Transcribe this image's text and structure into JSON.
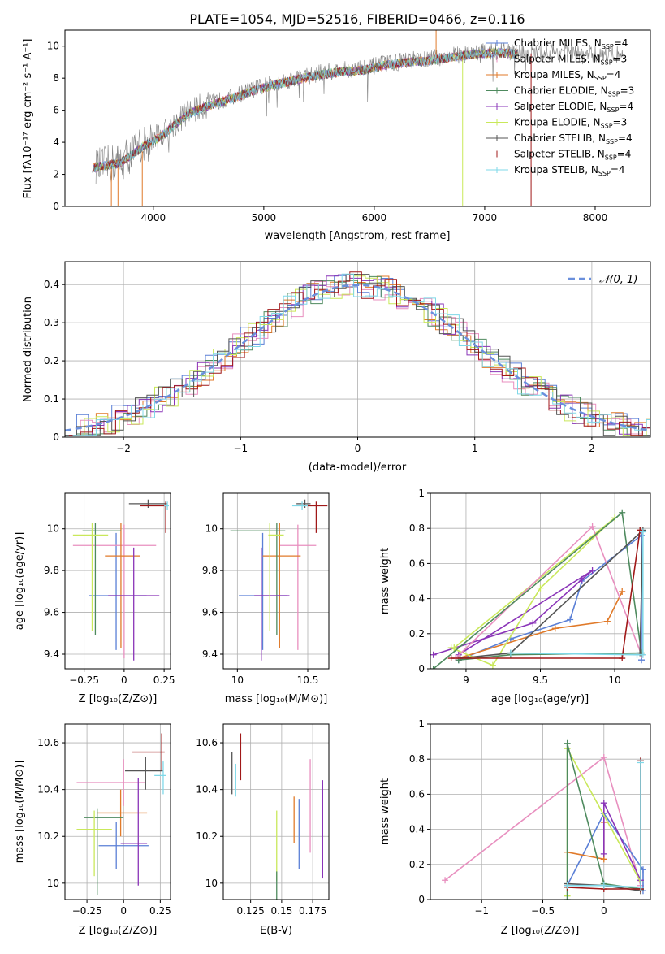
{
  "title": "PLATE=1054, MJD=52516, FIBERID=0466, z=0.116",
  "colors": {
    "blue": "#5a7fd6",
    "orange": "#e07a2a",
    "green": "#4e8a5e",
    "purple": "#8a34b8",
    "yellow": "#c9e85a",
    "pink": "#e88fbf",
    "gray": "#555555",
    "red": "#a01818",
    "cyan": "#7fd8e8",
    "raw": "#808080",
    "dashed": "#6a8fdc"
  },
  "chart_data": [
    {
      "id": "spectrum",
      "type": "line",
      "xlabel": "wavelength [Angstrom, rest frame]",
      "ylabel": "Flux [fλ10⁻¹⁷ erg cm⁻² s⁻¹ A⁻¹]",
      "xlim": [
        3200,
        8500
      ],
      "ylim": [
        0,
        11
      ],
      "xticks": [
        4000,
        5000,
        6000,
        7000,
        8000
      ],
      "yticks": [
        0,
        2,
        4,
        6,
        8,
        10
      ],
      "grid": false,
      "legend_position": "top-right",
      "legend": [
        {
          "label": "Chabrier MILES, N",
          "sub": "SSP",
          "value": "=4",
          "color": "blue"
        },
        {
          "label": "Salpeter MILES, N",
          "sub": "SSP",
          "value": "=3",
          "color": "pink"
        },
        {
          "label": "Kroupa MILES, N",
          "sub": "SSP",
          "value": "=4",
          "color": "orange"
        },
        {
          "label": "Chabrier ELODIE, N",
          "sub": "SSP",
          "value": "=3",
          "color": "green"
        },
        {
          "label": "Salpeter ELODIE, N",
          "sub": "SSP",
          "value": "=4",
          "color": "purple"
        },
        {
          "label": "Kroupa ELODIE, N",
          "sub": "SSP",
          "value": "=3",
          "color": "yellow"
        },
        {
          "label": "Chabrier STELIB, N",
          "sub": "SSP",
          "value": "=4",
          "color": "gray"
        },
        {
          "label": "Salpeter STELIB, N",
          "sub": "SSP",
          "value": "=4",
          "color": "red"
        },
        {
          "label": "Kroupa STELIB, N",
          "sub": "SSP",
          "value": "=4",
          "color": "cyan"
        }
      ],
      "observed": {
        "x": [
          3500,
          3700,
          3900,
          4100,
          4300,
          4500,
          4700,
          4900,
          5100,
          5300,
          5500,
          5700,
          5900,
          6100,
          6300,
          6500,
          6700,
          6900,
          7100,
          7300,
          7500,
          7700,
          7900,
          8100,
          8250
        ],
        "y": [
          2.4,
          2.8,
          3.8,
          4.6,
          5.8,
          6.4,
          6.8,
          7.3,
          7.7,
          8.0,
          8.3,
          8.5,
          8.6,
          8.9,
          9.1,
          9.2,
          9.4,
          9.6,
          9.7,
          9.6,
          9.5,
          9.7,
          9.4,
          9.5,
          9.5
        ]
      },
      "models": {
        "x": [
          3450,
          3700,
          3900,
          4100,
          4300,
          4500,
          4700,
          4900,
          5100,
          5300,
          5500,
          5700,
          5900,
          6100,
          6300,
          6500,
          6700,
          6900,
          7100,
          7300
        ],
        "y": [
          2.4,
          2.7,
          3.7,
          4.5,
          5.7,
          6.3,
          6.7,
          7.2,
          7.6,
          7.9,
          8.2,
          8.4,
          8.5,
          8.8,
          9.0,
          9.1,
          9.3,
          9.5,
          9.6,
          9.5
        ]
      }
    },
    {
      "id": "residuals",
      "type": "line",
      "xlabel": "(data-model)/error",
      "ylabel": "Normed distribution",
      "xlim": [
        -2.5,
        2.5
      ],
      "ylim": [
        0,
        0.46
      ],
      "xticks": [
        -2,
        -1,
        0,
        1,
        2
      ],
      "yticks": [
        0.0,
        0.1,
        0.2,
        0.3,
        0.4
      ],
      "grid": true,
      "legend_position": "top-right",
      "legend_label": "𝒩(0, 1)",
      "gaussian": {
        "mean": 0,
        "sigma": 1
      }
    },
    {
      "id": "z-age",
      "type": "scatter",
      "xlabel": "Z [log₁₀(Z/Z⊙)]",
      "ylabel": "age  [log₁₀(age/yr)]",
      "xlim": [
        -0.37,
        0.29
      ],
      "ylim": [
        9.33,
        10.17
      ],
      "xticks": [
        -0.25,
        0.0,
        0.25
      ],
      "yticks": [
        9.4,
        9.6,
        9.8,
        10.0
      ],
      "grid": true,
      "points": [
        {
          "color": "blue",
          "x": -0.05,
          "xerr": [
            0.17,
            0.19
          ],
          "y": 9.68,
          "yerr": [
            0.26,
            0.3
          ]
        },
        {
          "color": "pink",
          "x": 0.0,
          "xerr": [
            0.32,
            0.2
          ],
          "y": 9.92,
          "yerr": [
            0.54,
            0.1
          ]
        },
        {
          "color": "orange",
          "x": -0.02,
          "xerr": [
            0.1,
            0.12
          ],
          "y": 9.87,
          "yerr": [
            0.44,
            0.16
          ]
        },
        {
          "color": "green",
          "x": -0.18,
          "xerr": [
            0.08,
            0.16
          ],
          "y": 9.99,
          "yerr": [
            0.5,
            0.04
          ]
        },
        {
          "color": "purple",
          "x": 0.06,
          "xerr": [
            0.16,
            0.16
          ],
          "y": 9.68,
          "yerr": [
            0.31,
            0.23
          ]
        },
        {
          "color": "yellow",
          "x": -0.2,
          "xerr": [
            0.12,
            0.1
          ],
          "y": 9.97,
          "yerr": [
            0.46,
            0.06
          ]
        },
        {
          "color": "gray",
          "x": 0.15,
          "xerr": [
            0.12,
            0.12
          ],
          "y": 10.12,
          "yerr": [
            0.02,
            0.02
          ]
        },
        {
          "color": "red",
          "x": 0.26,
          "xerr": [
            0.16,
            0.01
          ],
          "y": 10.11,
          "yerr": [
            0.13,
            0.02
          ]
        },
        {
          "color": "cyan",
          "x": 0.27,
          "xerr": [
            0.02,
            0.01
          ],
          "y": 10.11,
          "yerr": [
            0.02,
            0.02
          ]
        }
      ]
    },
    {
      "id": "mass-age",
      "type": "scatter",
      "xlabel": "mass [log₁₀(M/M⊙)]",
      "ylabel": "",
      "xlim": [
        9.9,
        10.65
      ],
      "ylim": [
        9.33,
        10.17
      ],
      "xticks": [
        10.0,
        10.5
      ],
      "yticks": [
        9.4,
        9.6,
        9.8,
        10.0
      ],
      "grid": true,
      "points": [
        {
          "color": "blue",
          "x": 10.18,
          "xerr": [
            0.17,
            0.17
          ],
          "y": 9.68,
          "yerr": [
            0.26,
            0.3
          ]
        },
        {
          "color": "pink",
          "x": 10.43,
          "xerr": [
            0.13,
            0.13
          ],
          "y": 9.92,
          "yerr": [
            0.5,
            0.1
          ]
        },
        {
          "color": "orange",
          "x": 10.3,
          "xerr": [
            0.12,
            0.15
          ],
          "y": 9.87,
          "yerr": [
            0.44,
            0.16
          ]
        },
        {
          "color": "green",
          "x": 10.28,
          "xerr": [
            0.33,
            0.06
          ],
          "y": 9.99,
          "yerr": [
            0.5,
            0.04
          ]
        },
        {
          "color": "purple",
          "x": 10.17,
          "xerr": [
            0.05,
            0.2
          ],
          "y": 9.68,
          "yerr": [
            0.31,
            0.23
          ]
        },
        {
          "color": "yellow",
          "x": 10.23,
          "xerr": [
            0.01,
            0.1
          ],
          "y": 9.97,
          "yerr": [
            0.46,
            0.06
          ]
        },
        {
          "color": "gray",
          "x": 10.48,
          "xerr": [
            0.06,
            0.04
          ],
          "y": 10.12,
          "yerr": [
            0.02,
            0.02
          ]
        },
        {
          "color": "red",
          "x": 10.56,
          "xerr": [
            0.06,
            0.08
          ],
          "y": 10.11,
          "yerr": [
            0.13,
            0.02
          ]
        },
        {
          "color": "cyan",
          "x": 10.46,
          "xerr": [
            0.07,
            0.04
          ],
          "y": 10.11,
          "yerr": [
            0.02,
            0.02
          ]
        }
      ]
    },
    {
      "id": "age-weight",
      "type": "line",
      "xlabel": "age  [log₁₀(age/yr)]",
      "ylabel": "mass weight",
      "xlim": [
        8.76,
        10.24
      ],
      "ylim": [
        0,
        1.0
      ],
      "xticks": [
        9.0,
        9.5,
        10.0
      ],
      "yticks": [
        0.0,
        0.2,
        0.4,
        0.6,
        0.8,
        1.0
      ],
      "grid": true,
      "series": [
        {
          "color": "blue",
          "x": [
            8.95,
            9.3,
            9.7,
            9.78,
            10.18,
            10.18
          ],
          "y": [
            0.05,
            0.17,
            0.28,
            0.5,
            0.76,
            0.05
          ]
        },
        {
          "color": "orange",
          "x": [
            8.95,
            9.6,
            9.95,
            10.05
          ],
          "y": [
            0.06,
            0.23,
            0.27,
            0.44
          ]
        },
        {
          "color": "purple",
          "x": [
            8.78,
            9.45,
            9.78,
            9.85,
            8.95
          ],
          "y": [
            0.08,
            0.26,
            0.51,
            0.56,
            0.08
          ]
        },
        {
          "color": "yellow",
          "x": [
            8.9,
            9.18,
            9.5,
            10.0,
            8.92
          ],
          "y": [
            0.12,
            0.02,
            0.46,
            0.86,
            0.12
          ]
        },
        {
          "color": "pink",
          "x": [
            8.93,
            9.85,
            10.18,
            10.18
          ],
          "y": [
            0.06,
            0.81,
            0.08,
            0.08
          ]
        },
        {
          "color": "green",
          "x": [
            8.78,
            10.05,
            10.18,
            9.3,
            8.95
          ],
          "y": [
            0.0,
            0.89,
            0.09,
            0.08,
            0.05
          ]
        },
        {
          "color": "gray",
          "x": [
            8.96,
            9.3,
            10.19,
            10.17
          ],
          "y": [
            0.06,
            0.09,
            0.79,
            0.09
          ]
        },
        {
          "color": "red",
          "x": [
            8.9,
            10.05,
            10.17,
            10.17
          ],
          "y": [
            0.06,
            0.06,
            0.79,
            0.79
          ]
        },
        {
          "color": "cyan",
          "x": [
            9.3,
            10.15,
            10.19,
            10.19
          ],
          "y": [
            0.09,
            0.08,
            0.08,
            0.78
          ]
        }
      ]
    },
    {
      "id": "z-mass",
      "type": "scatter",
      "xlabel": "Z [log₁₀(Z/Z⊙)]",
      "ylabel": "mass [log₁₀(M/M⊙)]",
      "xlim": [
        -0.4,
        0.32
      ],
      "ylim": [
        9.93,
        10.68
      ],
      "xticks": [
        -0.25,
        0.0,
        0.25
      ],
      "yticks": [
        10.0,
        10.2,
        10.4,
        10.6
      ],
      "grid": true,
      "points": [
        {
          "color": "blue",
          "x": -0.05,
          "xerr": [
            0.12,
            0.22
          ],
          "y": 10.16,
          "yerr": [
            0.1,
            0.1
          ]
        },
        {
          "color": "pink",
          "x": 0.0,
          "xerr": [
            0.32,
            0.15
          ],
          "y": 10.43,
          "yerr": [
            0.1,
            0.1
          ]
        },
        {
          "color": "orange",
          "x": -0.02,
          "xerr": [
            0.16,
            0.18
          ],
          "y": 10.3,
          "yerr": [
            0.1,
            0.1
          ]
        },
        {
          "color": "green",
          "x": -0.18,
          "xerr": [
            0.09,
            0.18
          ],
          "y": 10.28,
          "yerr": [
            0.33,
            0.04
          ]
        },
        {
          "color": "purple",
          "x": 0.1,
          "xerr": [
            0.12,
            0.06
          ],
          "y": 10.17,
          "yerr": [
            0.18,
            0.28
          ]
        },
        {
          "color": "yellow",
          "x": -0.2,
          "xerr": [
            0.12,
            0.12
          ],
          "y": 10.23,
          "yerr": [
            0.2,
            0.08
          ]
        },
        {
          "color": "gray",
          "x": 0.15,
          "xerr": [
            0.14,
            0.12
          ],
          "y": 10.48,
          "yerr": [
            0.08,
            0.06
          ]
        },
        {
          "color": "red",
          "x": 0.26,
          "xerr": [
            0.2,
            0.02
          ],
          "y": 10.56,
          "yerr": [
            0.08,
            0.08
          ]
        },
        {
          "color": "cyan",
          "x": 0.27,
          "xerr": [
            0.06,
            0.02
          ],
          "y": 10.46,
          "yerr": [
            0.08,
            0.06
          ]
        }
      ]
    },
    {
      "id": "ebv-mass",
      "type": "scatter",
      "xlabel": "E(B-V)",
      "ylabel": "",
      "xlim": [
        0.103,
        0.188
      ],
      "ylim": [
        9.93,
        10.68
      ],
      "xticks": [
        0.125,
        0.15,
        0.175
      ],
      "yticks": [
        10.0,
        10.2,
        10.4,
        10.6
      ],
      "grid": true,
      "points": [
        {
          "color": "gray",
          "x": 0.11,
          "y": 10.47,
          "yerr": [
            0.09,
            0.09
          ]
        },
        {
          "color": "cyan",
          "x": 0.113,
          "y": 10.44,
          "yerr": [
            0.07,
            0.07
          ]
        },
        {
          "color": "red",
          "x": 0.117,
          "y": 10.54,
          "yerr": [
            0.1,
            0.1
          ]
        },
        {
          "color": "yellow",
          "x": 0.146,
          "y": 10.16,
          "yerr": [
            0.15,
            0.15
          ]
        },
        {
          "color": "green",
          "x": 0.146,
          "y": 9.99,
          "yerr": [
            0.06,
            0.06
          ]
        },
        {
          "color": "orange",
          "x": 0.16,
          "y": 10.27,
          "yerr": [
            0.1,
            0.1
          ]
        },
        {
          "color": "blue",
          "x": 0.164,
          "y": 10.21,
          "yerr": [
            0.15,
            0.15
          ]
        },
        {
          "color": "pink",
          "x": 0.173,
          "y": 10.33,
          "yerr": [
            0.2,
            0.2
          ]
        },
        {
          "color": "purple",
          "x": 0.183,
          "y": 10.23,
          "yerr": [
            0.21,
            0.21
          ]
        }
      ]
    },
    {
      "id": "z-weight",
      "type": "line",
      "xlabel": "Z [log₁₀(Z/Z⊙)]",
      "ylabel": "mass weight",
      "xlim": [
        -1.42,
        0.38
      ],
      "ylim": [
        0,
        1.0
      ],
      "xticks": [
        -1.0,
        -0.5,
        0.0
      ],
      "yticks": [
        0.0,
        0.2,
        0.4,
        0.6,
        0.8,
        1.0
      ],
      "grid": true,
      "series": [
        {
          "color": "pink",
          "x": [
            -1.3,
            0.0,
            0.3,
            0.3
          ],
          "y": [
            0.11,
            0.81,
            0.08,
            0.05
          ]
        },
        {
          "color": "blue",
          "x": [
            -0.3,
            0.0,
            0.32,
            0.32
          ],
          "y": [
            0.08,
            0.49,
            0.17,
            0.05
          ]
        },
        {
          "color": "orange",
          "x": [
            -0.3,
            0.0,
            0.0
          ],
          "y": [
            0.27,
            0.23,
            0.44
          ]
        },
        {
          "color": "purple",
          "x": [
            0.0,
            0.0,
            0.3,
            0.3
          ],
          "y": [
            0.26,
            0.55,
            0.11,
            0.05
          ]
        },
        {
          "color": "yellow",
          "x": [
            -0.3,
            -0.3,
            0.3,
            0.3
          ],
          "y": [
            0.02,
            0.86,
            0.1,
            0.05
          ]
        },
        {
          "color": "green",
          "x": [
            -0.3,
            -0.3,
            0.0,
            0.3
          ],
          "y": [
            0.0,
            0.89,
            0.09,
            0.06
          ]
        },
        {
          "color": "gray",
          "x": [
            -0.3,
            0.0,
            0.3,
            0.3
          ],
          "y": [
            0.09,
            0.08,
            0.05,
            0.79
          ]
        },
        {
          "color": "red",
          "x": [
            -0.3,
            0.0,
            0.3,
            0.3
          ],
          "y": [
            0.07,
            0.06,
            0.06,
            0.79
          ]
        },
        {
          "color": "cyan",
          "x": [
            -0.3,
            0.0,
            0.3,
            0.3
          ],
          "y": [
            0.08,
            0.08,
            0.07,
            0.78
          ]
        }
      ]
    }
  ]
}
